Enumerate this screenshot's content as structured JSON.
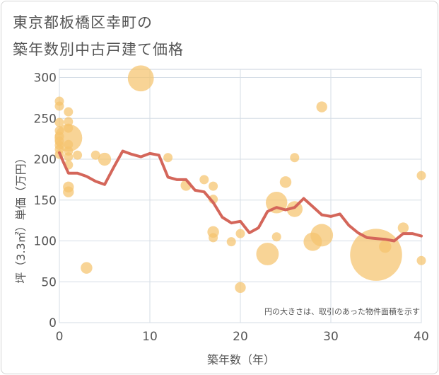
{
  "title_lines": [
    "東京都板橋区幸町の",
    "築年数別中古戸建て価格"
  ],
  "chart_data": {
    "type": "scatter",
    "xlabel": "築年数（年）",
    "ylabel": "坪（3.3㎡）単価（万円）",
    "xlim": [
      0,
      40
    ],
    "ylim": [
      0,
      310
    ],
    "xticks": [
      0,
      10,
      20,
      30,
      40
    ],
    "yticks": [
      0,
      50,
      100,
      150,
      200,
      250,
      300
    ],
    "grid": true,
    "note": "円の大きさは、取引のあった物件面積を示す",
    "colors": {
      "bubble": "#f5c36e",
      "line": "#d4665a",
      "grid": "#d5dde6",
      "axis_text": "#555555"
    },
    "bubbles": [
      {
        "x": 0,
        "y": 271,
        "s": 1
      },
      {
        "x": 0,
        "y": 265,
        "s": 1
      },
      {
        "x": 0,
        "y": 245,
        "s": 1
      },
      {
        "x": 0,
        "y": 235,
        "s": 1
      },
      {
        "x": 0,
        "y": 228,
        "s": 1
      },
      {
        "x": 0,
        "y": 222,
        "s": 1
      },
      {
        "x": 0,
        "y": 217,
        "s": 1
      },
      {
        "x": 0,
        "y": 212,
        "s": 1
      },
      {
        "x": 0,
        "y": 206,
        "s": 1
      },
      {
        "x": 1,
        "y": 258,
        "s": 1
      },
      {
        "x": 1,
        "y": 246,
        "s": 1
      },
      {
        "x": 1,
        "y": 238,
        "s": 1
      },
      {
        "x": 1,
        "y": 226,
        "s": 9
      },
      {
        "x": 1,
        "y": 218,
        "s": 1
      },
      {
        "x": 1,
        "y": 210,
        "s": 1
      },
      {
        "x": 1,
        "y": 203,
        "s": 1
      },
      {
        "x": 1,
        "y": 193,
        "s": 1
      },
      {
        "x": 1,
        "y": 166,
        "s": 1.4
      },
      {
        "x": 1,
        "y": 160,
        "s": 1.4
      },
      {
        "x": 2,
        "y": 205,
        "s": 1
      },
      {
        "x": 3,
        "y": 67,
        "s": 1.6
      },
      {
        "x": 4,
        "y": 205,
        "s": 1
      },
      {
        "x": 5,
        "y": 200,
        "s": 2
      },
      {
        "x": 9,
        "y": 299,
        "s": 8
      },
      {
        "x": 12,
        "y": 202,
        "s": 1
      },
      {
        "x": 14,
        "y": 168,
        "s": 1.4
      },
      {
        "x": 16,
        "y": 175,
        "s": 1
      },
      {
        "x": 17,
        "y": 167,
        "s": 1
      },
      {
        "x": 17,
        "y": 151,
        "s": 1
      },
      {
        "x": 17,
        "y": 111,
        "s": 1.6
      },
      {
        "x": 17,
        "y": 104,
        "s": 1
      },
      {
        "x": 19,
        "y": 99,
        "s": 1
      },
      {
        "x": 20,
        "y": 109,
        "s": 1
      },
      {
        "x": 20,
        "y": 43,
        "s": 1.4
      },
      {
        "x": 23,
        "y": 84,
        "s": 6
      },
      {
        "x": 24,
        "y": 147,
        "s": 5.5
      },
      {
        "x": 24,
        "y": 105,
        "s": 1
      },
      {
        "x": 25,
        "y": 172,
        "s": 1.6
      },
      {
        "x": 26,
        "y": 202,
        "s": 1
      },
      {
        "x": 26,
        "y": 139,
        "s": 3
      },
      {
        "x": 28,
        "y": 99,
        "s": 4
      },
      {
        "x": 29,
        "y": 264,
        "s": 1.4
      },
      {
        "x": 29,
        "y": 107,
        "s": 6
      },
      {
        "x": 35,
        "y": 83,
        "s": 32
      },
      {
        "x": 36,
        "y": 93,
        "s": 1.8
      },
      {
        "x": 38,
        "y": 116,
        "s": 1.4
      },
      {
        "x": 40,
        "y": 180,
        "s": 1
      },
      {
        "x": 40,
        "y": 76,
        "s": 1
      }
    ],
    "line": {
      "x": [
        0,
        0.5,
        1,
        2,
        3,
        4,
        5,
        6,
        7,
        8,
        9,
        10,
        11,
        12,
        13,
        14,
        15,
        16,
        17,
        18,
        19,
        20,
        21,
        22,
        23,
        24,
        25,
        26,
        27,
        28,
        29,
        30,
        31,
        32,
        33,
        34,
        35,
        36,
        37,
        38,
        39,
        40
      ],
      "y": [
        208,
        195,
        183,
        183,
        179,
        173,
        169,
        190,
        210,
        206,
        203,
        207,
        205,
        178,
        175,
        175,
        162,
        160,
        147,
        129,
        122,
        124,
        110,
        116,
        136,
        141,
        138,
        141,
        152,
        142,
        132,
        130,
        133,
        119,
        110,
        104,
        103,
        102,
        100,
        109,
        109,
        106
      ]
    }
  }
}
